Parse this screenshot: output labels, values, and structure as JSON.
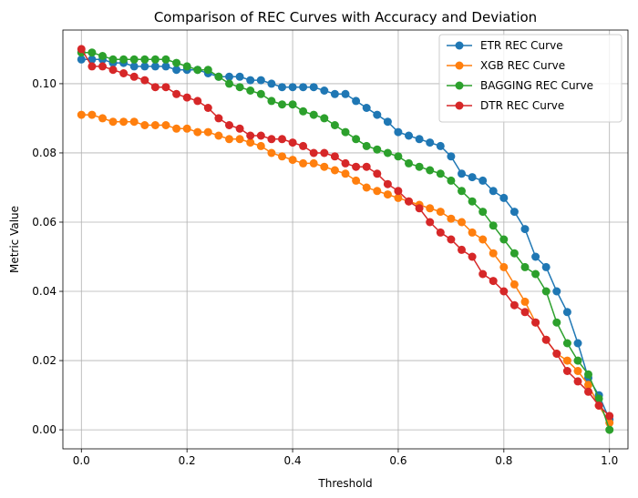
{
  "chart_data": {
    "type": "line",
    "title": "Comparison of REC Curves with Accuracy and Deviation",
    "xlabel": "Threshold",
    "ylabel": "Metric Value",
    "xlim": [
      -0.035,
      1.035
    ],
    "ylim": [
      -0.0055,
      0.1155
    ],
    "xticks": [
      0.0,
      0.2,
      0.4,
      0.6,
      0.8,
      1.0
    ],
    "xtick_labels": [
      "0.0",
      "0.2",
      "0.4",
      "0.6",
      "0.8",
      "1.0"
    ],
    "yticks": [
      0.0,
      0.02,
      0.04,
      0.06,
      0.08,
      0.1
    ],
    "ytick_labels": [
      "0.00",
      "0.02",
      "0.04",
      "0.06",
      "0.08",
      "0.10"
    ],
    "grid": true,
    "legend_position": "top-right",
    "series": [
      {
        "name": "ETR REC Curve",
        "color": "#1f77b4",
        "points": [
          [
            0.0,
            0.107
          ],
          [
            0.02,
            0.107
          ],
          [
            0.04,
            0.107
          ],
          [
            0.06,
            0.106
          ],
          [
            0.08,
            0.106
          ],
          [
            0.1,
            0.105
          ],
          [
            0.12,
            0.105
          ],
          [
            0.14,
            0.105
          ],
          [
            0.16,
            0.105
          ],
          [
            0.18,
            0.104
          ],
          [
            0.2,
            0.104
          ],
          [
            0.22,
            0.104
          ],
          [
            0.24,
            0.103
          ],
          [
            0.26,
            0.102
          ],
          [
            0.28,
            0.102
          ],
          [
            0.3,
            0.102
          ],
          [
            0.32,
            0.101
          ],
          [
            0.34,
            0.101
          ],
          [
            0.36,
            0.1
          ],
          [
            0.38,
            0.099
          ],
          [
            0.4,
            0.099
          ],
          [
            0.42,
            0.099
          ],
          [
            0.44,
            0.099
          ],
          [
            0.46,
            0.098
          ],
          [
            0.48,
            0.097
          ],
          [
            0.5,
            0.097
          ],
          [
            0.52,
            0.095
          ],
          [
            0.54,
            0.093
          ],
          [
            0.56,
            0.091
          ],
          [
            0.58,
            0.089
          ],
          [
            0.6,
            0.086
          ],
          [
            0.62,
            0.085
          ],
          [
            0.64,
            0.084
          ],
          [
            0.66,
            0.083
          ],
          [
            0.68,
            0.082
          ],
          [
            0.7,
            0.079
          ],
          [
            0.72,
            0.074
          ],
          [
            0.74,
            0.073
          ],
          [
            0.76,
            0.072
          ],
          [
            0.78,
            0.069
          ],
          [
            0.8,
            0.067
          ],
          [
            0.82,
            0.063
          ],
          [
            0.84,
            0.058
          ],
          [
            0.86,
            0.05
          ],
          [
            0.88,
            0.047
          ],
          [
            0.9,
            0.04
          ],
          [
            0.92,
            0.034
          ],
          [
            0.94,
            0.025
          ],
          [
            0.96,
            0.015
          ],
          [
            0.98,
            0.01
          ],
          [
            1.0,
            0.003
          ]
        ]
      },
      {
        "name": "XGB REC Curve",
        "color": "#ff7f0e",
        "points": [
          [
            0.0,
            0.091
          ],
          [
            0.02,
            0.091
          ],
          [
            0.04,
            0.09
          ],
          [
            0.06,
            0.089
          ],
          [
            0.08,
            0.089
          ],
          [
            0.1,
            0.089
          ],
          [
            0.12,
            0.088
          ],
          [
            0.14,
            0.088
          ],
          [
            0.16,
            0.088
          ],
          [
            0.18,
            0.087
          ],
          [
            0.2,
            0.087
          ],
          [
            0.22,
            0.086
          ],
          [
            0.24,
            0.086
          ],
          [
            0.26,
            0.085
          ],
          [
            0.28,
            0.084
          ],
          [
            0.3,
            0.084
          ],
          [
            0.32,
            0.083
          ],
          [
            0.34,
            0.082
          ],
          [
            0.36,
            0.08
          ],
          [
            0.38,
            0.079
          ],
          [
            0.4,
            0.078
          ],
          [
            0.42,
            0.077
          ],
          [
            0.44,
            0.077
          ],
          [
            0.46,
            0.076
          ],
          [
            0.48,
            0.075
          ],
          [
            0.5,
            0.074
          ],
          [
            0.52,
            0.072
          ],
          [
            0.54,
            0.07
          ],
          [
            0.56,
            0.069
          ],
          [
            0.58,
            0.068
          ],
          [
            0.6,
            0.067
          ],
          [
            0.62,
            0.066
          ],
          [
            0.64,
            0.065
          ],
          [
            0.66,
            0.064
          ],
          [
            0.68,
            0.063
          ],
          [
            0.7,
            0.061
          ],
          [
            0.72,
            0.06
          ],
          [
            0.74,
            0.057
          ],
          [
            0.76,
            0.055
          ],
          [
            0.78,
            0.051
          ],
          [
            0.8,
            0.047
          ],
          [
            0.82,
            0.042
          ],
          [
            0.84,
            0.037
          ],
          [
            0.86,
            0.031
          ],
          [
            0.88,
            0.026
          ],
          [
            0.9,
            0.022
          ],
          [
            0.92,
            0.02
          ],
          [
            0.94,
            0.017
          ],
          [
            0.96,
            0.013
          ],
          [
            0.98,
            0.007
          ],
          [
            1.0,
            0.002
          ]
        ]
      },
      {
        "name": "BAGGING REC Curve",
        "color": "#2ca02c",
        "points": [
          [
            0.0,
            0.109
          ],
          [
            0.02,
            0.109
          ],
          [
            0.04,
            0.108
          ],
          [
            0.06,
            0.107
          ],
          [
            0.08,
            0.107
          ],
          [
            0.1,
            0.107
          ],
          [
            0.12,
            0.107
          ],
          [
            0.14,
            0.107
          ],
          [
            0.16,
            0.107
          ],
          [
            0.18,
            0.106
          ],
          [
            0.2,
            0.105
          ],
          [
            0.22,
            0.104
          ],
          [
            0.24,
            0.104
          ],
          [
            0.26,
            0.102
          ],
          [
            0.28,
            0.1
          ],
          [
            0.3,
            0.099
          ],
          [
            0.32,
            0.098
          ],
          [
            0.34,
            0.097
          ],
          [
            0.36,
            0.095
          ],
          [
            0.38,
            0.094
          ],
          [
            0.4,
            0.094
          ],
          [
            0.42,
            0.092
          ],
          [
            0.44,
            0.091
          ],
          [
            0.46,
            0.09
          ],
          [
            0.48,
            0.088
          ],
          [
            0.5,
            0.086
          ],
          [
            0.52,
            0.084
          ],
          [
            0.54,
            0.082
          ],
          [
            0.56,
            0.081
          ],
          [
            0.58,
            0.08
          ],
          [
            0.6,
            0.079
          ],
          [
            0.62,
            0.077
          ],
          [
            0.64,
            0.076
          ],
          [
            0.66,
            0.075
          ],
          [
            0.68,
            0.074
          ],
          [
            0.7,
            0.072
          ],
          [
            0.72,
            0.069
          ],
          [
            0.74,
            0.066
          ],
          [
            0.76,
            0.063
          ],
          [
            0.78,
            0.059
          ],
          [
            0.8,
            0.055
          ],
          [
            0.82,
            0.051
          ],
          [
            0.84,
            0.047
          ],
          [
            0.86,
            0.045
          ],
          [
            0.88,
            0.04
          ],
          [
            0.9,
            0.031
          ],
          [
            0.92,
            0.025
          ],
          [
            0.94,
            0.02
          ],
          [
            0.96,
            0.016
          ],
          [
            0.98,
            0.009
          ],
          [
            1.0,
            0.0
          ]
        ]
      },
      {
        "name": "DTR REC Curve",
        "color": "#d62728",
        "points": [
          [
            0.0,
            0.11
          ],
          [
            0.02,
            0.105
          ],
          [
            0.04,
            0.105
          ],
          [
            0.06,
            0.104
          ],
          [
            0.08,
            0.103
          ],
          [
            0.1,
            0.102
          ],
          [
            0.12,
            0.101
          ],
          [
            0.14,
            0.099
          ],
          [
            0.16,
            0.099
          ],
          [
            0.18,
            0.097
          ],
          [
            0.2,
            0.096
          ],
          [
            0.22,
            0.095
          ],
          [
            0.24,
            0.093
          ],
          [
            0.26,
            0.09
          ],
          [
            0.28,
            0.088
          ],
          [
            0.3,
            0.087
          ],
          [
            0.32,
            0.085
          ],
          [
            0.34,
            0.085
          ],
          [
            0.36,
            0.084
          ],
          [
            0.38,
            0.084
          ],
          [
            0.4,
            0.083
          ],
          [
            0.42,
            0.082
          ],
          [
            0.44,
            0.08
          ],
          [
            0.46,
            0.08
          ],
          [
            0.48,
            0.079
          ],
          [
            0.5,
            0.077
          ],
          [
            0.52,
            0.076
          ],
          [
            0.54,
            0.076
          ],
          [
            0.56,
            0.074
          ],
          [
            0.58,
            0.071
          ],
          [
            0.6,
            0.069
          ],
          [
            0.62,
            0.066
          ],
          [
            0.64,
            0.064
          ],
          [
            0.66,
            0.06
          ],
          [
            0.68,
            0.057
          ],
          [
            0.7,
            0.055
          ],
          [
            0.72,
            0.052
          ],
          [
            0.74,
            0.05
          ],
          [
            0.76,
            0.045
          ],
          [
            0.78,
            0.043
          ],
          [
            0.8,
            0.04
          ],
          [
            0.82,
            0.036
          ],
          [
            0.84,
            0.034
          ],
          [
            0.86,
            0.031
          ],
          [
            0.88,
            0.026
          ],
          [
            0.9,
            0.022
          ],
          [
            0.92,
            0.017
          ],
          [
            0.94,
            0.014
          ],
          [
            0.96,
            0.011
          ],
          [
            0.98,
            0.007
          ],
          [
            1.0,
            0.004
          ]
        ]
      }
    ]
  }
}
